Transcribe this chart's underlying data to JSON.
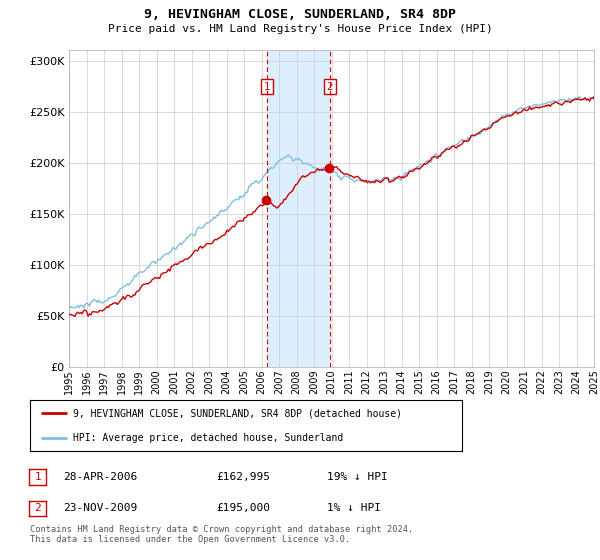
{
  "title": "9, HEVINGHAM CLOSE, SUNDERLAND, SR4 8DP",
  "subtitle": "Price paid vs. HM Land Registry's House Price Index (HPI)",
  "ylim": [
    0,
    310000
  ],
  "yticks": [
    0,
    50000,
    100000,
    150000,
    200000,
    250000,
    300000
  ],
  "ytick_labels": [
    "£0",
    "£50K",
    "£100K",
    "£150K",
    "£200K",
    "£250K",
    "£300K"
  ],
  "sale1_date_num": 2006.32,
  "sale1_price": 162995,
  "sale2_date_num": 2009.9,
  "sale2_price": 195000,
  "hpi_color": "#7fbfdf",
  "price_color": "#cc0000",
  "shade_color": "#ddeeff",
  "legend_line1": "9, HEVINGHAM CLOSE, SUNDERLAND, SR4 8DP (detached house)",
  "legend_line2": "HPI: Average price, detached house, Sunderland",
  "table_row1": [
    "1",
    "28-APR-2006",
    "£162,995",
    "19% ↓ HPI"
  ],
  "table_row2": [
    "2",
    "23-NOV-2009",
    "£195,000",
    "1% ↓ HPI"
  ],
  "footnote": "Contains HM Land Registry data © Crown copyright and database right 2024.\nThis data is licensed under the Open Government Licence v3.0.",
  "grid_color": "#cccccc",
  "spine_color": "#aaaaaa"
}
